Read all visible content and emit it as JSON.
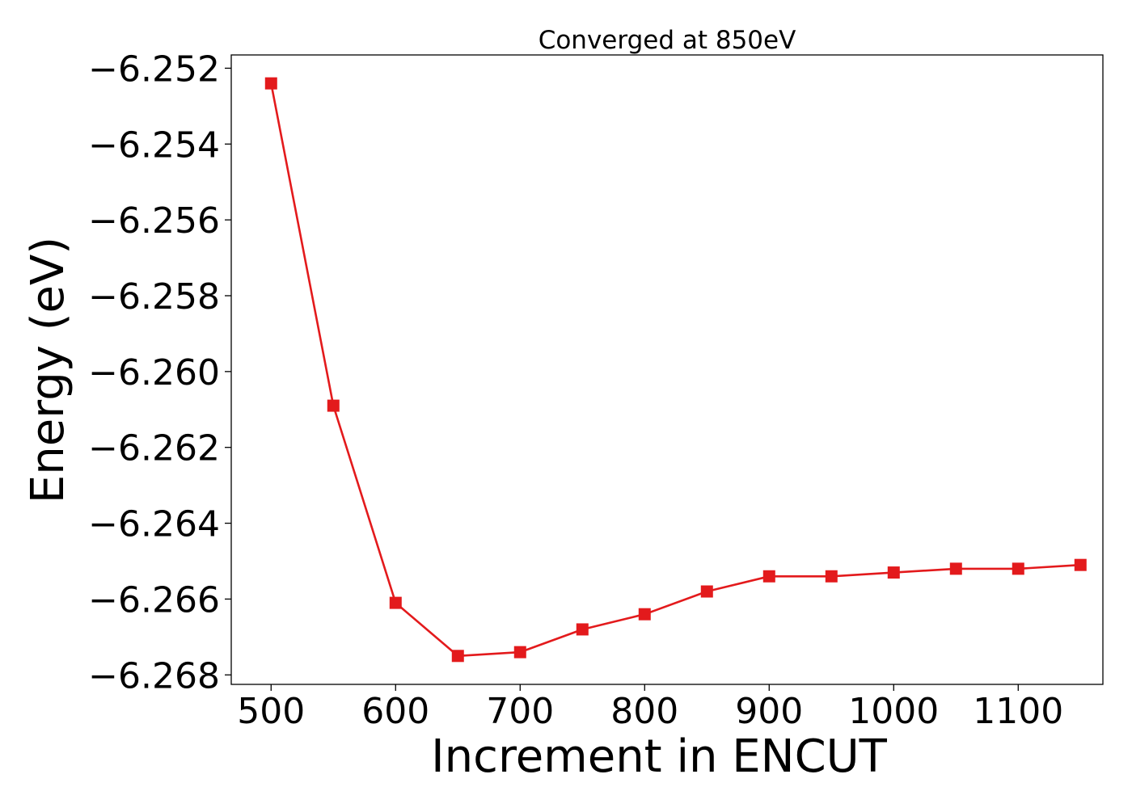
{
  "chart_data": {
    "type": "line",
    "title": "Converged at 850eV",
    "xlabel": "Increment in ENCUT",
    "ylabel": "Energy (eV)",
    "xlim": [
      468,
      1168
    ],
    "ylim": [
      -6.26825,
      -6.25165
    ],
    "xticks": [
      500,
      600,
      700,
      800,
      900,
      1000,
      1100
    ],
    "xtick_labels": [
      "500",
      "600",
      "700",
      "800",
      "900",
      "1000",
      "1100"
    ],
    "yticks": [
      -6.252,
      -6.254,
      -6.256,
      -6.258,
      -6.26,
      -6.262,
      -6.264,
      -6.266,
      -6.268
    ],
    "ytick_labels": [
      "−6.252",
      "−6.254",
      "−6.256",
      "−6.258",
      "−6.260",
      "−6.262",
      "−6.264",
      "−6.266",
      "−6.268"
    ],
    "grid": false,
    "color": "#e31a1c",
    "marker": "square",
    "series": [
      {
        "x": [
          500,
          550,
          600,
          650,
          700,
          750,
          800,
          850,
          900,
          950,
          1000,
          1050,
          1100,
          1150
        ],
        "y": [
          -6.2524,
          -6.2609,
          -6.2661,
          -6.2675,
          -6.2674,
          -6.2668,
          -6.2664,
          -6.2658,
          -6.2654,
          -6.2654,
          -6.2653,
          -6.2652,
          -6.2652,
          -6.2651
        ]
      }
    ]
  }
}
